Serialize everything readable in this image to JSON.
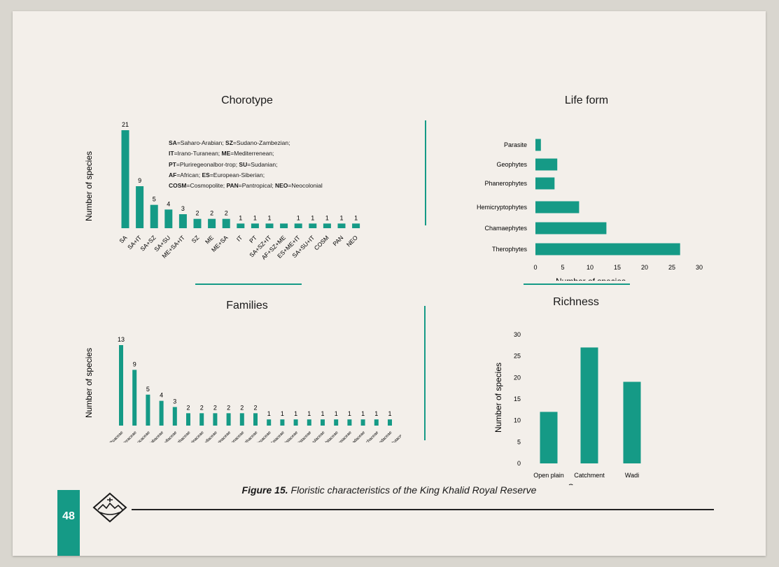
{
  "caption": {
    "label": "Figure 15.",
    "text": "Floristic characteristics of the King Khalid Royal Reserve"
  },
  "page_number": "48",
  "logo_icon": "reserve-emblem-icon",
  "colors": {
    "bar": "#159a86",
    "accent": "#159a86"
  },
  "chorotype_legend": [
    {
      "parts": [
        {
          "b": "SA"
        },
        {
          "t": "=Saharo-Arabian; "
        },
        {
          "b": "SZ"
        },
        {
          "t": "=Sudano-Zambezian;"
        }
      ]
    },
    {
      "parts": [
        {
          "b": "IT"
        },
        {
          "t": "=Irano-Turanean; "
        },
        {
          "b": "ME"
        },
        {
          "t": "=Mediterrenean;"
        }
      ]
    },
    {
      "parts": [
        {
          "b": "PT"
        },
        {
          "t": "=Pluriregeonalbor-trop; "
        },
        {
          "b": "SU"
        },
        {
          "t": "=Sudanian;"
        }
      ]
    },
    {
      "parts": [
        {
          "b": "AF"
        },
        {
          "t": "=African; "
        },
        {
          "b": "ES"
        },
        {
          "t": "=European-Siberian;"
        }
      ]
    },
    {
      "parts": [
        {
          "b": "COSM"
        },
        {
          "t": "=Cosmopolite; "
        },
        {
          "b": "PAN"
        },
        {
          "t": "=Pantropical; "
        },
        {
          "b": "NEO"
        },
        {
          "t": "=Neocolonial"
        }
      ]
    }
  ],
  "chart_data": [
    {
      "id": "chorotype",
      "type": "bar",
      "title": "Chorotype",
      "ylabel": "Number of species",
      "categories": [
        "SA",
        "SA+IT",
        "SA+SZ",
        "SA+SU",
        "ME+SA+IT",
        "SZ",
        "ME",
        "ME+SA",
        "IT",
        "PT",
        "SA+SZ+IT",
        "AF+SZ+ME",
        "ES+ME+IT",
        "SA+SU+IT",
        "COSM",
        "PAN",
        "NEO"
      ],
      "values": [
        21,
        9,
        5,
        4,
        3,
        2,
        2,
        2,
        1,
        1,
        1,
        1,
        1,
        1,
        1,
        1,
        1
      ],
      "value_labels": [
        "21",
        "9",
        "5",
        "4",
        "3",
        "2",
        "2",
        "2",
        "1",
        "1",
        "1",
        "",
        "1",
        "1",
        "1",
        "1",
        "1"
      ],
      "data_labels": true
    },
    {
      "id": "lifeform",
      "type": "bar",
      "orientation": "horizontal",
      "title": "Life form",
      "xlabel": "Number of species",
      "categories": [
        "Parasite",
        "Geophytes",
        "Phanerophytes",
        "Hemicryptophytes",
        "Chamaephytes",
        "Therophytes"
      ],
      "values": [
        1,
        4,
        3.5,
        8,
        13,
        26.5
      ],
      "xticks": [
        "0",
        "5",
        "10",
        "15",
        "20",
        "25",
        "30"
      ],
      "xlim": [
        0,
        30
      ]
    },
    {
      "id": "families",
      "type": "bar",
      "title": "Families",
      "ylabel": "Number of species",
      "categories": [
        "Poaceae",
        "Asteraceae",
        "Brassicaceae",
        "Fabaceae",
        "Zygophyllaceae",
        "Amaranthaceae",
        "Boraginaceae",
        "Caryophyllaceae",
        "Plantaginaceae",
        "Polygonaceae",
        "Acanthaceae",
        "Aizoaceae",
        "Apiaceae",
        "Cistaceae",
        "Cistaceae",
        "Convolvulaceae",
        "Cucurbitaceae",
        "Heliotropiaceae",
        "Neuradaceae",
        "Orobanchaceae",
        "Resedaceae",
        "Rutaceae"
      ],
      "values": [
        13,
        9,
        5,
        4,
        3,
        2,
        2,
        2,
        2,
        2,
        2,
        1,
        1,
        1,
        1,
        1,
        1,
        1,
        1,
        1,
        1,
        1
      ],
      "data_labels": true
    },
    {
      "id": "richness",
      "type": "bar",
      "title": "Richness",
      "ylabel": "Number of species",
      "xlabel": "Survey area",
      "categories": [
        "Open plain",
        "Catchment",
        "Wadi"
      ],
      "values": [
        12,
        27,
        19
      ],
      "yticks": [
        "0",
        "5",
        "10",
        "15",
        "20",
        "25",
        "30"
      ],
      "ylim": [
        0,
        30
      ]
    }
  ]
}
